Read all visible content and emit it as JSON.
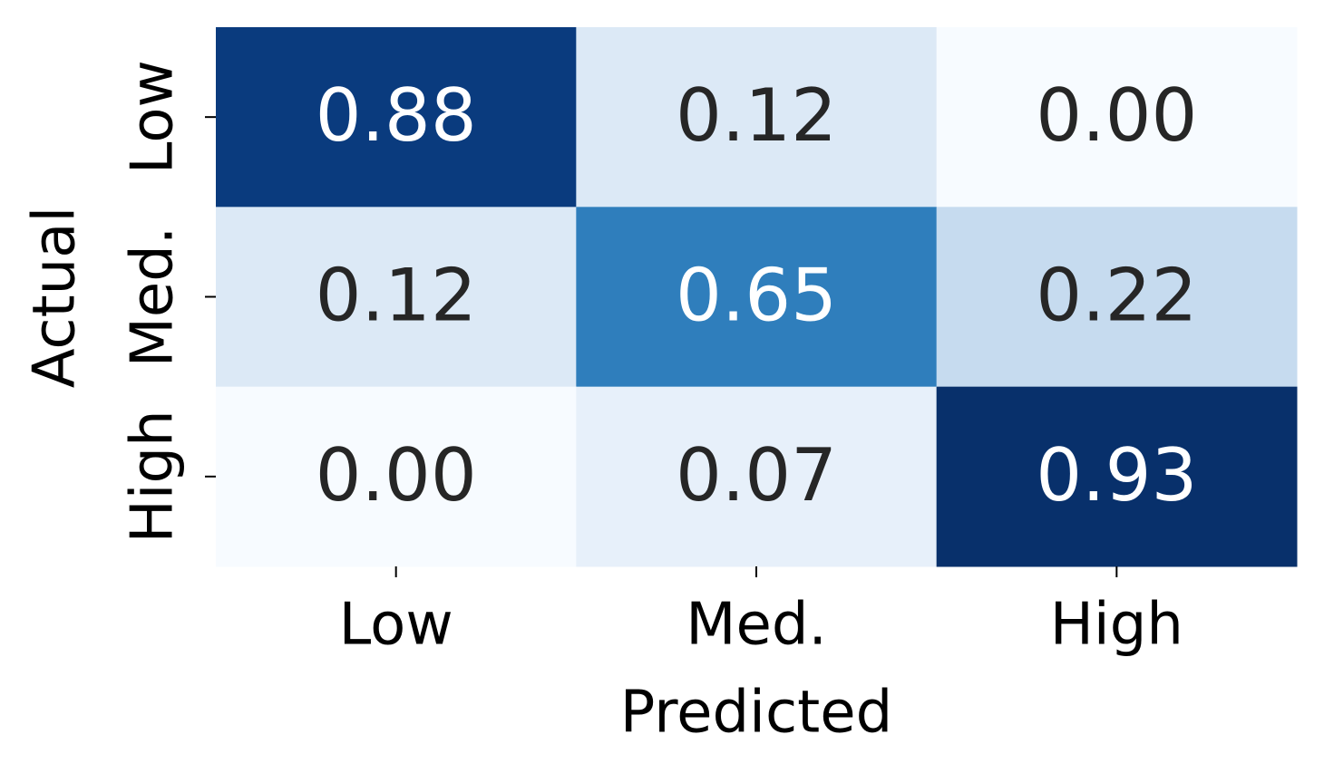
{
  "chart_data": {
    "type": "heatmap",
    "xlabel": "Predicted",
    "ylabel": "Actual",
    "x_categories": [
      "Low",
      "Med.",
      "High"
    ],
    "y_categories": [
      "Low",
      "Med.",
      "High"
    ],
    "values": [
      [
        0.88,
        0.12,
        0.0
      ],
      [
        0.12,
        0.65,
        0.22
      ],
      [
        0.0,
        0.07,
        0.93
      ]
    ],
    "value_labels": [
      [
        "0.88",
        "0.12",
        "0.00"
      ],
      [
        "0.12",
        "0.65",
        "0.22"
      ],
      [
        "0.00",
        "0.07",
        "0.93"
      ]
    ],
    "colors": [
      [
        "#0a3b7e",
        "#dce9f6",
        "#f7fbff"
      ],
      [
        "#dce9f6",
        "#2f7ebc",
        "#c6dbef"
      ],
      [
        "#f7fbff",
        "#e7f0fa",
        "#08306b"
      ]
    ]
  }
}
